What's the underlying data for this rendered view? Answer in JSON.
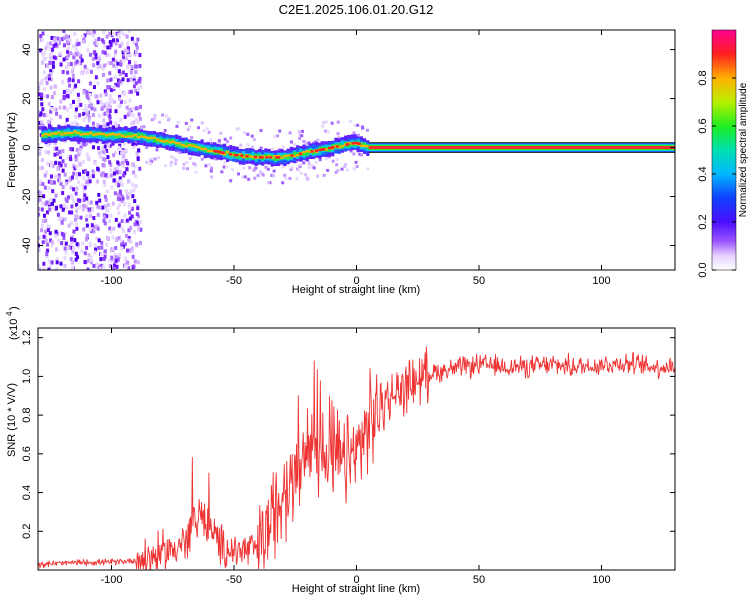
{
  "title": "C2E1.2025.106.01.20.G12",
  "top": {
    "xlabel": "Height of straight line (km)",
    "ylabel": "Frequency (Hz)",
    "xticks": [
      "-100",
      "-50",
      "0",
      "50",
      "100"
    ],
    "yticks": [
      "40",
      "20",
      "0",
      "-20",
      "-40"
    ],
    "colorbar": {
      "label": "Normalized spectral amplitude",
      "ticks": [
        "0.0",
        "0.2",
        "0.4",
        "0.6",
        "0.8"
      ]
    }
  },
  "bottom": {
    "xlabel": "Height of straight line (km)",
    "ylabel": "SNR (10 * V/V)",
    "scale_base": "(x10",
    "scale_exp": "4",
    "scale_close": ")",
    "xticks": [
      "-100",
      "-50",
      "0",
      "50",
      "100"
    ],
    "yticks": [
      "1.2",
      "1.0",
      "0.8",
      "0.6",
      "0.4",
      "0.2"
    ]
  },
  "chart_data": [
    {
      "type": "heatmap",
      "xlabel": "Height of straight line (km)",
      "ylabel": "Frequency (Hz)",
      "xlim": [
        -130,
        130
      ],
      "ylim": [
        -50,
        48
      ],
      "colorscale_range": [
        0,
        1
      ],
      "colorscale": "rainbow (white-purple-blue-cyan-green-yellow-red-magenta)",
      "ridge_frequency_hz": {
        "x": [
          -130,
          -115,
          -100,
          -90,
          -80,
          -70,
          -60,
          -50,
          -40,
          -30,
          -20,
          -10,
          -5,
          0,
          5,
          50,
          100,
          130
        ],
        "y": [
          5,
          6,
          5,
          5,
          3,
          1,
          -1,
          -3,
          -4,
          -4,
          -2,
          0,
          1,
          2,
          0,
          0,
          0,
          0
        ]
      }
    },
    {
      "type": "line",
      "xlabel": "Height of straight line (km)",
      "ylabel": "SNR (10 * V/V)",
      "xlim": [
        -130,
        130
      ],
      "ylim": [
        0,
        1.25
      ],
      "y_scale_factor": 10000,
      "series": [
        {
          "color": "#ee3333",
          "x": [
            -130,
            -110,
            -100,
            -90,
            -80,
            -70,
            -65,
            -60,
            -55,
            -50,
            -45,
            -40,
            -35,
            -30,
            -25,
            -20,
            -15,
            -10,
            -5,
            0,
            5,
            10,
            20,
            30,
            40,
            50,
            60,
            70,
            80,
            90,
            100,
            110,
            120,
            130
          ],
          "y": [
            0.03,
            0.04,
            0.04,
            0.05,
            0.08,
            0.15,
            0.3,
            0.2,
            0.12,
            0.1,
            0.1,
            0.12,
            0.25,
            0.4,
            0.45,
            0.6,
            0.65,
            0.6,
            0.55,
            0.6,
            0.75,
            0.85,
            0.95,
            1.02,
            1.04,
            1.06,
            1.05,
            1.05,
            1.06,
            1.05,
            1.06,
            1.07,
            1.05,
            1.05
          ]
        }
      ]
    }
  ]
}
